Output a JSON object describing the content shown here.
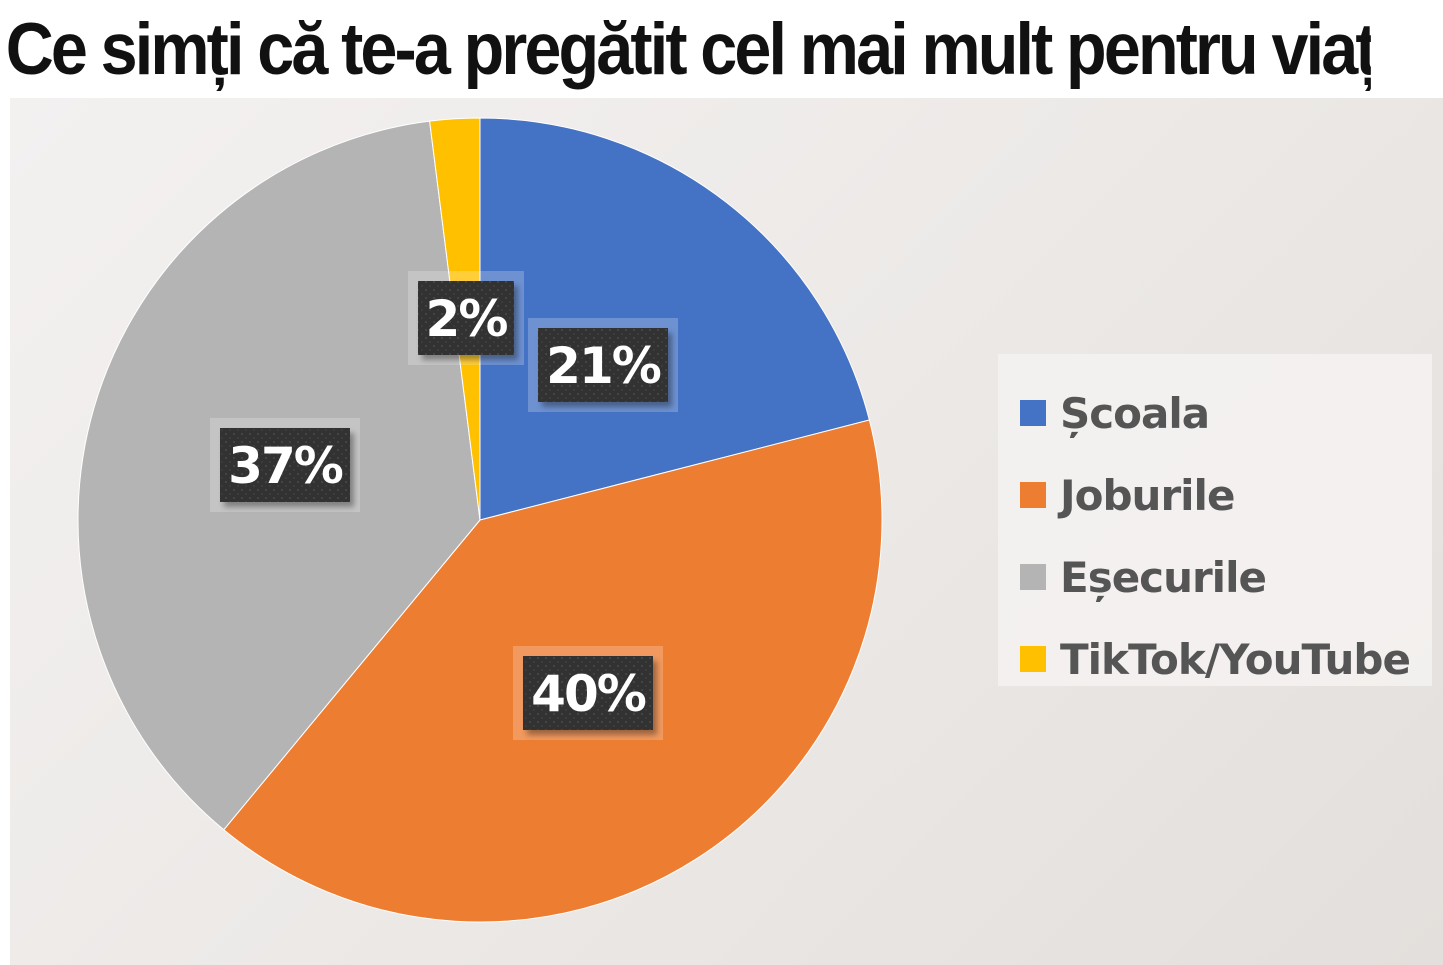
{
  "chart_data": {
    "type": "pie",
    "title": "Ce simți că te-a pregătit cel mai mult pentru viață?",
    "categories": [
      "Școala",
      "Joburile",
      "Eșecurile",
      "TikTok/YouTube"
    ],
    "values": [
      21,
      40,
      37,
      2
    ],
    "data_labels": [
      "21%",
      "40%",
      "37%",
      "2%"
    ],
    "colors": [
      "#4472C4",
      "#ED7D31",
      "#B4B4B4",
      "#FFC000"
    ],
    "start_angle_deg": 0,
    "direction": "clockwise",
    "legend_position": "right"
  }
}
